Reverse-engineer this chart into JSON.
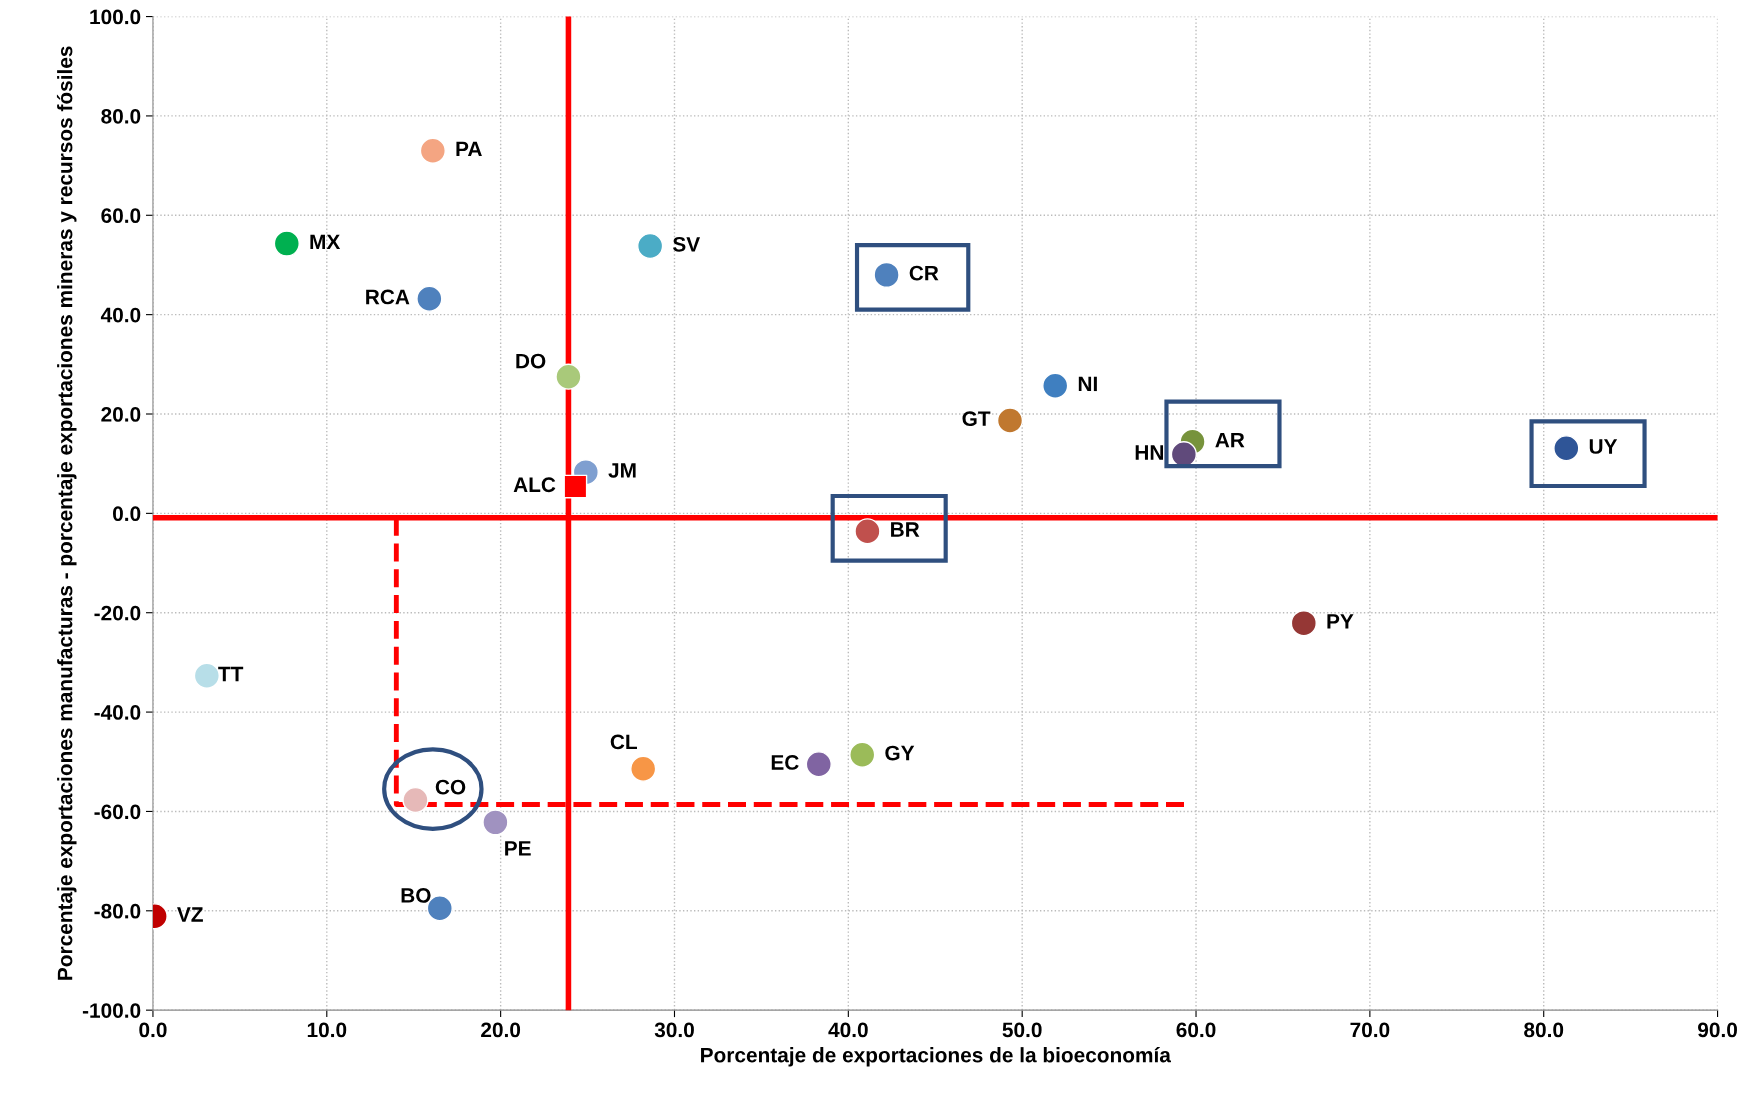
{
  "chart_data": {
    "type": "scatter",
    "xlabel": "Porcentaje de exportaciones de la bioeconomía",
    "ylabel": "Porcentaje exportaciones manufacturas - porcentaje exportaciones mineras y recursos fósiles",
    "xlim": [
      0,
      90
    ],
    "ylim": [
      -100,
      100
    ],
    "xticks": [
      {
        "value": 0,
        "label": "0.0"
      },
      {
        "value": 10,
        "label": "10.0"
      },
      {
        "value": 20,
        "label": "20.0"
      },
      {
        "value": 30,
        "label": "30.0"
      },
      {
        "value": 40,
        "label": "40.0"
      },
      {
        "value": 50,
        "label": "50.0"
      },
      {
        "value": 60,
        "label": "60.0"
      },
      {
        "value": 70,
        "label": "70.0"
      },
      {
        "value": 80,
        "label": "80.0"
      },
      {
        "value": 90,
        "label": "90.0"
      }
    ],
    "yticks": [
      {
        "value": -100,
        "label": "-100.0"
      },
      {
        "value": -80,
        "label": "-80.0"
      },
      {
        "value": -60,
        "label": "-60.0"
      },
      {
        "value": -40,
        "label": "-40.0"
      },
      {
        "value": -20,
        "label": "-20.0"
      },
      {
        "value": 0,
        "label": "0.0"
      },
      {
        "value": 20,
        "label": "20.0"
      },
      {
        "value": 40,
        "label": "40.0"
      },
      {
        "value": 60,
        "label": "60.0"
      },
      {
        "value": 80,
        "label": "80.0"
      },
      {
        "value": 100,
        "label": "100.0"
      }
    ],
    "grid": true,
    "legend": false,
    "marker": "circle",
    "ref_lines": [
      {
        "axis": "x",
        "value": 23.9,
        "color": "#ff0000"
      },
      {
        "axis": "y",
        "value": -0.9,
        "color": "#ff0000"
      }
    ],
    "series": [
      {
        "name": "PA",
        "color": "#f4a582",
        "x": [
          16.1
        ],
        "values": [
          73.0
        ]
      },
      {
        "name": "MX",
        "color": "#00b050",
        "x": [
          7.7
        ],
        "values": [
          54.3
        ]
      },
      {
        "name": "SV",
        "color": "#4bacc6",
        "x": [
          28.6
        ],
        "values": [
          53.8
        ]
      },
      {
        "name": "CR",
        "color": "#4f81bd",
        "x": [
          42.2
        ],
        "values": [
          48.0
        ]
      },
      {
        "name": "RCA",
        "color": "#4f81bd",
        "x": [
          15.9
        ],
        "values": [
          43.2
        ]
      },
      {
        "name": "DO",
        "color": "#a9c97a",
        "x": [
          23.9
        ],
        "values": [
          27.5
        ]
      },
      {
        "name": "NI",
        "color": "#3f7fc0",
        "x": [
          51.9
        ],
        "values": [
          25.7
        ]
      },
      {
        "name": "GT",
        "color": "#c0782f",
        "x": [
          49.3
        ],
        "values": [
          18.7
        ]
      },
      {
        "name": "AR",
        "color": "#77933c",
        "x": [
          59.8
        ],
        "values": [
          14.4
        ]
      },
      {
        "name": "HN",
        "color": "#604a7b",
        "x": [
          59.3
        ],
        "values": [
          11.9
        ]
      },
      {
        "name": "UY",
        "color": "#2f5597",
        "x": [
          81.3
        ],
        "values": [
          13.1
        ]
      },
      {
        "name": "JM",
        "color": "#7f9fd0",
        "x": [
          24.9
        ],
        "values": [
          8.3
        ]
      },
      {
        "name": "ALC",
        "color": "#ff0000",
        "x": [
          24.3
        ],
        "values": [
          5.4
        ],
        "marker": "square"
      },
      {
        "name": "BR",
        "color": "#c0504d",
        "x": [
          41.1
        ],
        "values": [
          -3.6
        ]
      },
      {
        "name": "PY",
        "color": "#953735",
        "x": [
          66.2
        ],
        "values": [
          -22.1
        ]
      },
      {
        "name": "TT",
        "color": "#b7dee8",
        "x": [
          3.1
        ],
        "values": [
          -32.7
        ]
      },
      {
        "name": "CL",
        "color": "#f79646",
        "x": [
          28.2
        ],
        "values": [
          -51.4
        ]
      },
      {
        "name": "EC",
        "color": "#8064a2",
        "x": [
          38.3
        ],
        "values": [
          -50.5
        ]
      },
      {
        "name": "GY",
        "color": "#9bbb59",
        "x": [
          40.8
        ],
        "values": [
          -48.6
        ]
      },
      {
        "name": "CO",
        "color": "#e6b9b8",
        "x": [
          15.1
        ],
        "values": [
          -57.7
        ]
      },
      {
        "name": "PE",
        "color": "#a092c0",
        "x": [
          19.7
        ],
        "values": [
          -62.2
        ]
      },
      {
        "name": "BO",
        "color": "#4f81bd",
        "x": [
          16.5
        ],
        "values": [
          -79.5
        ]
      },
      {
        "name": "VZ",
        "color": "#c00000",
        "x": [
          0.1
        ],
        "values": [
          -81.1
        ]
      },
      {
        "type": "line",
        "color": "#ff0000",
        "line_style": "dashed",
        "marker": "none",
        "x": [
          14.0,
          14.0,
          59.4
        ],
        "values": [
          -0.9,
          -58.6,
          -58.6
        ]
      }
    ]
  }
}
